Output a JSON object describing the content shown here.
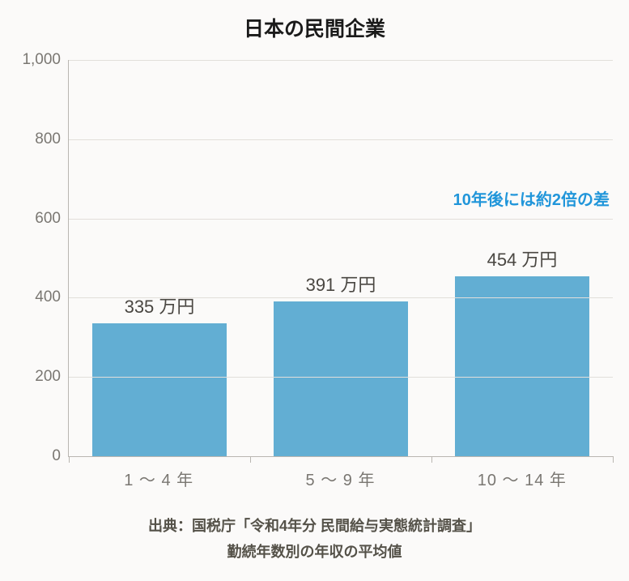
{
  "chart": {
    "type": "bar",
    "title": "日本の民間企業",
    "title_fontsize": 25,
    "title_color": "#1a1a1a",
    "categories": [
      "1 ～ 4 年",
      "5 ～ 9 年",
      "10 ～ 14 年"
    ],
    "values": [
      335,
      391,
      454
    ],
    "value_unit": "万円",
    "value_label_fontsize": 22,
    "value_label_color": "#4a4742",
    "bar_color": "#62aed3",
    "bar_width": 0.74,
    "ylim": [
      0,
      1000
    ],
    "ytick_step": 200,
    "yticks": [
      0,
      200,
      400,
      600,
      800,
      1000
    ],
    "axis_color": "#b9b6b1",
    "grid_color": "#e2dfda",
    "tick_label_color": "#7a7772",
    "tick_label_fontsize": 19,
    "xlabel_fontsize": 20,
    "background_color": "#fbfaf9",
    "annotation": {
      "text": "10年後には約2倍の差",
      "color": "#2196da",
      "fontsize": 20,
      "y_value": 680,
      "align": "right"
    }
  },
  "footer": {
    "line1": "出典：国税庁「令和4年分 民間給与実態統計調査」",
    "line2": "勤続年数別の年収の平均値",
    "fontsize": 18,
    "color": "#545148"
  }
}
